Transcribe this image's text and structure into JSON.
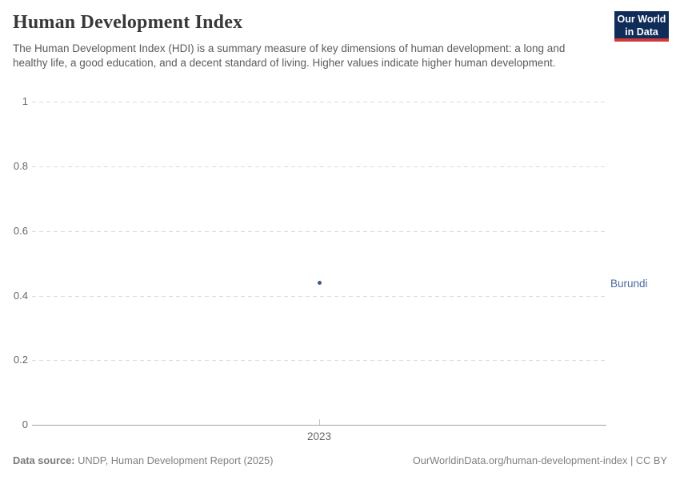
{
  "header": {
    "title": "Human Development Index",
    "subtitle": "The Human Development Index (HDI) is a summary measure of key dimensions of human development: a long and healthy life, a good education, and a decent standard of living. Higher values indicate higher human development.",
    "logo": {
      "line1": "Our World",
      "line2": "in Data"
    }
  },
  "chart_data": {
    "type": "scatter",
    "title": "Human Development Index",
    "series": [
      {
        "name": "Burundi",
        "x": [
          2023
        ],
        "values": [
          0.44
        ]
      }
    ],
    "entity_label": "Burundi",
    "xtick_labels": [
      "2023"
    ],
    "ytick_labels": [
      "1",
      "0.8",
      "0.6",
      "0.4",
      "0.2",
      "0"
    ],
    "ytick_values": [
      1,
      0.8,
      0.6,
      0.4,
      0.2,
      0
    ],
    "ylim": [
      0,
      1
    ],
    "xlabel": "",
    "ylabel": "",
    "grid": "horizontal-dashed",
    "legend_position": "right-entity-label",
    "point_color": "#3d5a8f",
    "label_color": "#4c6a9c"
  },
  "footer": {
    "datasource_label": "Data source:",
    "datasource_value": " UNDP, Human Development Report (2025)",
    "link": "OurWorldinData.org/human-development-index | CC BY"
  },
  "colors": {
    "logo_navy": "#102d59",
    "logo_red": "#d0393a",
    "series_blue": "#3d5a8f",
    "grid_gray": "#dcdcdc",
    "axis_text": "#666666"
  }
}
